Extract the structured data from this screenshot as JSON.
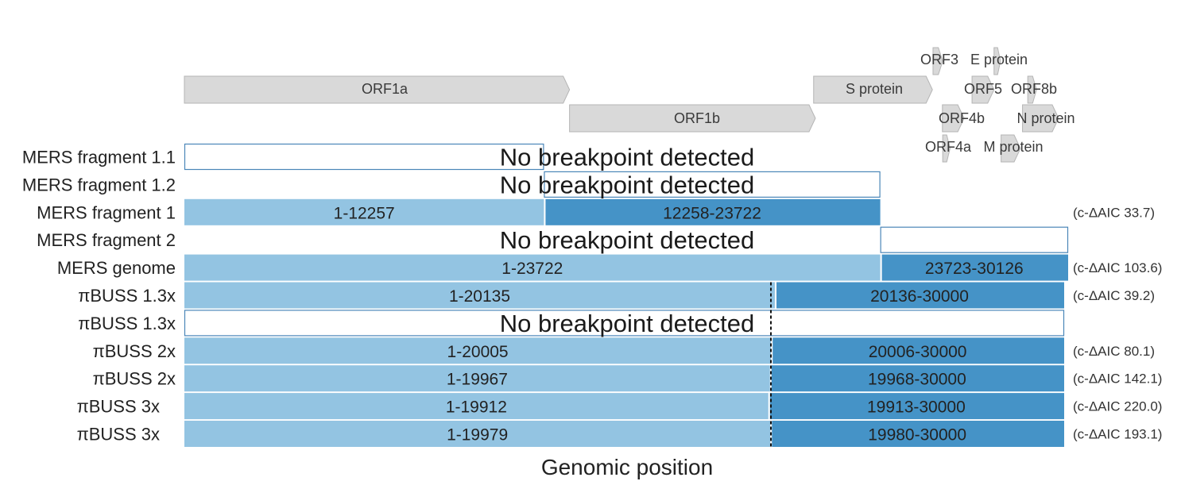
{
  "colors": {
    "segment_left": "#93c4e2",
    "segment_right": "#4593c7",
    "outline": "#4a86b8",
    "gene_fill": "#d9d9d9",
    "gene_stroke": "#b5b5b5",
    "breakpoint_line": "#111111"
  },
  "genome_length": 30126,
  "genes": [
    {
      "name": "ORF1a",
      "start": 1,
      "end": 13130,
      "level": "upper"
    },
    {
      "name": "ORF1b",
      "start": 13130,
      "end": 21510,
      "level": "middle"
    },
    {
      "name": "S protein",
      "start": 21450,
      "end": 25500,
      "level": "upper"
    },
    {
      "name": "ORF3",
      "start": 25520,
      "end": 25850,
      "level": "top"
    },
    {
      "name": "E protein",
      "start": 27600,
      "end": 27820,
      "level": "top"
    },
    {
      "name": "ORF5",
      "start": 26850,
      "end": 27600,
      "level": "upper"
    },
    {
      "name": "ORF8b",
      "start": 28750,
      "end": 29050,
      "level": "upper"
    },
    {
      "name": "ORF4b",
      "start": 25840,
      "end": 26580,
      "level": "middle"
    },
    {
      "name": "N protein",
      "start": 28570,
      "end": 29800,
      "level": "middle"
    },
    {
      "name": "ORF4a",
      "start": 25850,
      "end": 26100,
      "level": "lower"
    },
    {
      "name": "M protein",
      "start": 27840,
      "end": 28500,
      "level": "lower"
    }
  ],
  "no_breakpoint_text": "No breakpoint detected",
  "rows": [
    {
      "label": "MERS fragment 1.1",
      "type": "empty",
      "start": 1,
      "end": 12257
    },
    {
      "label": "MERS fragment 1.2",
      "type": "empty",
      "start": 12258,
      "end": 23722
    },
    {
      "label": "MERS fragment 1",
      "type": "split",
      "segments": [
        {
          "start": 1,
          "end": 12257,
          "text": "1-12257"
        },
        {
          "start": 12258,
          "end": 23722,
          "text": "12258-23722"
        }
      ],
      "aic": "(c-ΔAIC 33.7)"
    },
    {
      "label": "MERS fragment 2",
      "type": "empty",
      "start": 23723,
      "end": 30126
    },
    {
      "label": "MERS genome",
      "type": "split",
      "segments": [
        {
          "start": 1,
          "end": 23722,
          "text": "1-23722"
        },
        {
          "start": 23723,
          "end": 30126,
          "text": "23723-30126"
        }
      ],
      "aic": "(c-ΔAIC 103.6)"
    },
    {
      "label": "πBUSS 1.3x",
      "type": "split",
      "scale_end": 30000,
      "segments": [
        {
          "start": 1,
          "end": 20135,
          "text": "1-20135"
        },
        {
          "start": 20136,
          "end": 30000,
          "text": "20136-30000"
        }
      ],
      "aic": "(c-ΔAIC 39.2)"
    },
    {
      "label": "πBUSS 1.3x",
      "type": "empty",
      "start": 1,
      "end": 30000,
      "scale_end": 30000
    },
    {
      "label": "πBUSS 2x",
      "type": "split",
      "scale_end": 30000,
      "segments": [
        {
          "start": 1,
          "end": 20005,
          "text": "1-20005"
        },
        {
          "start": 20006,
          "end": 30000,
          "text": "20006-30000"
        }
      ],
      "aic": "(c-ΔAIC 80.1)"
    },
    {
      "label": "πBUSS 2x",
      "type": "split",
      "scale_end": 30000,
      "segments": [
        {
          "start": 1,
          "end": 19967,
          "text": "1-19967"
        },
        {
          "start": 19968,
          "end": 30000,
          "text": "19968-30000"
        }
      ],
      "aic": "(c-ΔAIC 142.1)"
    },
    {
      "label": "πBUSS 3x",
      "type": "split",
      "scale_end": 30000,
      "segments": [
        {
          "start": 1,
          "end": 19912,
          "text": "1-19912"
        },
        {
          "start": 19913,
          "end": 30000,
          "text": "19913-30000"
        }
      ],
      "aic": "(c-ΔAIC 220.0)"
    },
    {
      "label": "πBUSS 3x",
      "type": "split",
      "scale_end": 30000,
      "segments": [
        {
          "start": 1,
          "end": 19979,
          "text": "1-19979"
        },
        {
          "start": 19980,
          "end": 30000,
          "text": "19980-30000"
        }
      ],
      "aic": "(c-ΔAIC 193.1)"
    }
  ],
  "true_breakpoint": 20000,
  "axis_title": "Genomic position"
}
